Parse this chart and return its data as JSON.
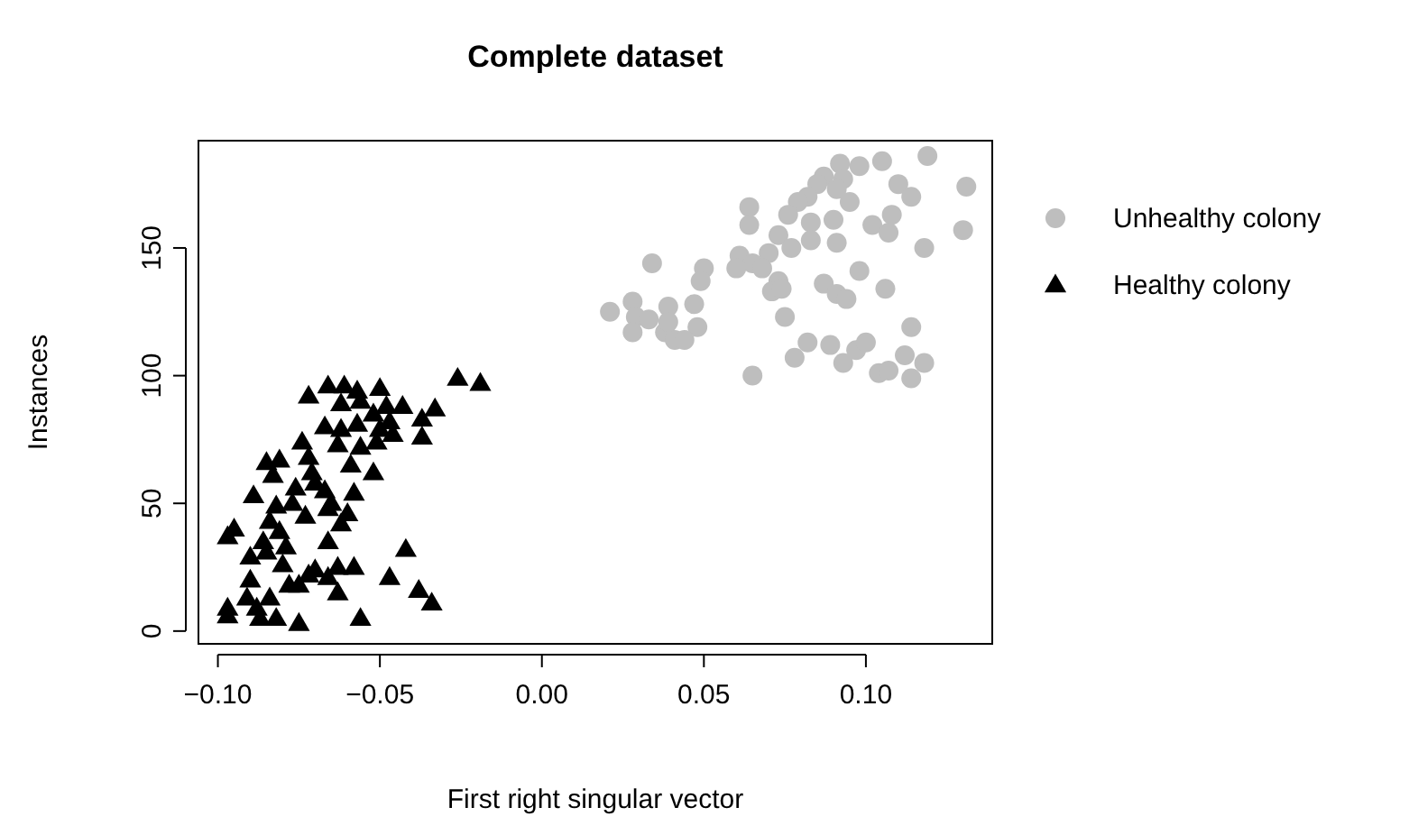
{
  "chart_data": {
    "type": "scatter",
    "title": "Complete dataset",
    "xlabel": "First right singular vector",
    "ylabel": "Instances",
    "xlim": [
      -0.106,
      0.139
    ],
    "ylim": [
      -5,
      192
    ],
    "xticks": [
      {
        "value": -0.1,
        "label": "−0.10"
      },
      {
        "value": -0.05,
        "label": "−0.05"
      },
      {
        "value": 0,
        "label": "0.00"
      },
      {
        "value": 0.05,
        "label": "0.05"
      },
      {
        "value": 0.1,
        "label": "0.10"
      }
    ],
    "yticks": [
      0,
      50,
      100,
      150
    ],
    "grid": false,
    "legend": "right",
    "series": [
      {
        "name": "Unhealthy colony",
        "color": "#bebebe",
        "marker": "circle",
        "x": [
          0.119,
          0.105,
          0.092,
          0.098,
          0.087,
          0.093,
          0.085,
          0.091,
          0.095,
          0.11,
          0.114,
          0.131,
          0.082,
          0.079,
          0.076,
          0.064,
          0.064,
          0.083,
          0.09,
          0.108,
          0.102,
          0.107,
          0.13,
          0.118,
          0.091,
          0.083,
          0.073,
          0.077,
          0.07,
          0.061,
          0.065,
          0.06,
          0.068,
          0.073,
          0.071,
          0.074,
          0.087,
          0.091,
          0.094,
          0.098,
          0.106,
          0.034,
          0.05,
          0.049,
          0.047,
          0.028,
          0.021,
          0.039,
          0.029,
          0.033,
          0.028,
          0.038,
          0.041,
          0.048,
          0.044,
          0.075,
          0.065,
          0.078,
          0.082,
          0.089,
          0.093,
          0.097,
          0.1,
          0.104,
          0.107,
          0.112,
          0.114,
          0.114,
          0.118,
          0.039
        ],
        "values": [
          186,
          184,
          183,
          182,
          178,
          177,
          175,
          173,
          168,
          175,
          170,
          174,
          170,
          168,
          163,
          166,
          159,
          160,
          161,
          163,
          159,
          156,
          157,
          150,
          152,
          153,
          155,
          150,
          148,
          147,
          144,
          142,
          142,
          137,
          133,
          134,
          136,
          132,
          130,
          141,
          134,
          144,
          142,
          137,
          128,
          129,
          125,
          127,
          123,
          122,
          117,
          117,
          114,
          119,
          114,
          123,
          100,
          107,
          113,
          112,
          105,
          110,
          113,
          101,
          102,
          108,
          119,
          99,
          105,
          121
        ]
      },
      {
        "name": "Healthy colony",
        "color": "#000000",
        "marker": "triangle",
        "x": [
          -0.026,
          -0.019,
          -0.072,
          -0.066,
          -0.061,
          -0.057,
          -0.05,
          -0.062,
          -0.056,
          -0.048,
          -0.043,
          -0.037,
          -0.033,
          -0.037,
          -0.052,
          -0.047,
          -0.067,
          -0.062,
          -0.057,
          -0.05,
          -0.046,
          -0.063,
          -0.056,
          -0.051,
          -0.074,
          -0.072,
          -0.085,
          -0.081,
          -0.083,
          -0.071,
          -0.076,
          -0.07,
          -0.067,
          -0.059,
          -0.052,
          -0.089,
          -0.082,
          -0.077,
          -0.065,
          -0.058,
          -0.073,
          -0.066,
          -0.06,
          -0.062,
          -0.095,
          -0.097,
          -0.084,
          -0.081,
          -0.086,
          -0.079,
          -0.066,
          -0.09,
          -0.085,
          -0.08,
          -0.042,
          -0.058,
          -0.063,
          -0.07,
          -0.075,
          -0.078,
          -0.09,
          -0.066,
          -0.063,
          -0.047,
          -0.038,
          -0.034,
          -0.097,
          -0.097,
          -0.091,
          -0.088,
          -0.084,
          -0.087,
          -0.082,
          -0.075,
          -0.056,
          -0.072
        ],
        "values": [
          99,
          97,
          92,
          96,
          96,
          94,
          95,
          89,
          90,
          88,
          88,
          83,
          87,
          76,
          85,
          82,
          80,
          79,
          81,
          79,
          77,
          73,
          72,
          74,
          74,
          68,
          66,
          67,
          61,
          62,
          56,
          58,
          55,
          65,
          62,
          53,
          49,
          50,
          50,
          54,
          45,
          48,
          46,
          42,
          40,
          37,
          43,
          39,
          35,
          33,
          35,
          29,
          31,
          26,
          32,
          25,
          25,
          24,
          18,
          18,
          20,
          21,
          15,
          21,
          16,
          11,
          9,
          6,
          13,
          9,
          13,
          5,
          5,
          3,
          5,
          22
        ]
      }
    ]
  }
}
